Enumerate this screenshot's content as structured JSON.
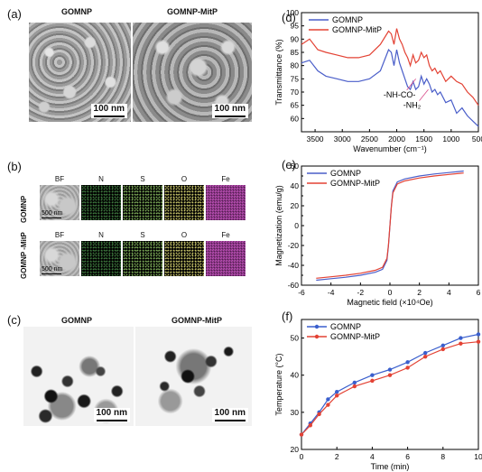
{
  "panels": {
    "a": {
      "label": "(a)",
      "left_title": "GOMNP",
      "right_title": "GOMNP-MitP",
      "scale_left": "100 nm",
      "scale_right": "100 nm"
    },
    "b": {
      "label": "(b)",
      "columns": [
        "BF",
        "N",
        "S",
        "O",
        "Fe"
      ],
      "rows": [
        {
          "label": "GOMNP",
          "scale": "500 nm"
        },
        {
          "label": "GOMNP -MitP",
          "scale": "500 nm"
        }
      ],
      "tile_colors": {
        "N": "#3f7a3f",
        "S": "#7fae5a",
        "O": "#c9c66a",
        "Fe": "#b84fb2"
      }
    },
    "c": {
      "label": "(c)",
      "left_title": "GOMNP",
      "right_title": "GOMNP-MitP",
      "scale_left": "100 nm",
      "scale_right": "100 nm"
    },
    "d": {
      "label": "(d)"
    },
    "e": {
      "label": "(e)"
    },
    "f": {
      "label": "(f)"
    }
  },
  "chart_data": [
    {
      "type": "line",
      "panel": "d",
      "xlabel": "Wavenumber (cm⁻¹)",
      "ylabel": "Transmittance (%)",
      "xlim": [
        3750,
        500
      ],
      "ylim": [
        55,
        100
      ],
      "xticks": [
        3500,
        3000,
        2500,
        2000,
        1500,
        1000,
        500
      ],
      "yticks": [
        60,
        65,
        70,
        75,
        80,
        85,
        90,
        95,
        100
      ],
      "legend": "top-left",
      "annotations": [
        {
          "text": "-NH-CO-",
          "x": 1650,
          "y": 68
        },
        {
          "text": "-NH₂",
          "x": 1420,
          "y": 64
        }
      ],
      "series": [
        {
          "name": "GOMNP",
          "color": "#4a5ec9",
          "x": [
            3750,
            3600,
            3450,
            3300,
            3100,
            2900,
            2700,
            2500,
            2300,
            2150,
            2100,
            2050,
            2000,
            1950,
            1900,
            1850,
            1800,
            1750,
            1700,
            1650,
            1600,
            1550,
            1500,
            1450,
            1400,
            1350,
            1300,
            1250,
            1200,
            1100,
            1000,
            900,
            800,
            700,
            600,
            500
          ],
          "y": [
            81,
            82,
            78,
            76,
            75,
            74,
            74,
            75,
            78,
            86,
            85,
            80,
            86,
            81,
            78,
            75,
            72,
            71,
            74,
            71,
            72,
            76,
            73,
            75,
            73,
            70,
            71,
            69,
            70,
            66,
            67,
            62,
            64,
            61,
            59,
            57
          ]
        },
        {
          "name": "GOMNP-MitP",
          "color": "#e34234",
          "x": [
            3750,
            3600,
            3450,
            3300,
            3100,
            2900,
            2700,
            2500,
            2300,
            2150,
            2100,
            2050,
            2000,
            1950,
            1900,
            1850,
            1800,
            1750,
            1700,
            1650,
            1600,
            1550,
            1500,
            1450,
            1400,
            1350,
            1300,
            1250,
            1200,
            1100,
            1000,
            900,
            800,
            700,
            600,
            500
          ],
          "y": [
            88,
            90,
            86,
            85,
            84,
            83,
            83,
            84,
            88,
            93,
            92,
            88,
            94,
            90,
            88,
            85,
            83,
            80,
            84,
            81,
            82,
            85,
            83,
            84,
            80,
            78,
            79,
            77,
            78,
            74,
            76,
            74,
            73,
            70,
            68,
            65
          ]
        }
      ]
    },
    {
      "type": "line",
      "panel": "e",
      "xlabel": "Magnetic field (×10⁴Oe)",
      "ylabel": "Magnetization (emu/g)",
      "xlim": [
        -6,
        6
      ],
      "ylim": [
        -60,
        60
      ],
      "xticks": [
        -6,
        -4,
        -2,
        0,
        2,
        4,
        6
      ],
      "yticks": [
        -60,
        -50,
        -40,
        -30,
        -20,
        -10,
        0,
        10,
        20,
        30,
        40,
        50,
        60
      ],
      "legend": "top-left",
      "series": [
        {
          "name": "GOMNP",
          "color": "#4a5ec9",
          "x": [
            -5,
            -4,
            -3,
            -2,
            -1,
            -0.5,
            -0.2,
            -0.1,
            0,
            0.1,
            0.2,
            0.5,
            1,
            2,
            3,
            4,
            5
          ],
          "y": [
            -55,
            -53.5,
            -52,
            -50,
            -47,
            -44,
            -35,
            -20,
            0,
            20,
            35,
            44,
            47,
            50,
            52,
            53.5,
            55
          ]
        },
        {
          "name": "GOMNP-MitP",
          "color": "#e34234",
          "x": [
            -5,
            -4,
            -3,
            -2,
            -1,
            -0.5,
            -0.2,
            -0.1,
            0,
            0.1,
            0.2,
            0.5,
            1,
            2,
            3,
            4,
            5
          ],
          "y": [
            -53,
            -51.5,
            -50,
            -48,
            -45,
            -42,
            -33,
            -19,
            0,
            19,
            33,
            42,
            45,
            48,
            50,
            51.5,
            53
          ]
        }
      ]
    },
    {
      "type": "line",
      "panel": "f",
      "xlabel": "Time (min)",
      "ylabel": "Temperature (°C)",
      "xlim": [
        0,
        10
      ],
      "ylim": [
        20,
        55
      ],
      "xticks": [
        0,
        2,
        4,
        6,
        8,
        10
      ],
      "yticks": [
        20,
        30,
        40,
        50
      ],
      "legend": "top-left",
      "series": [
        {
          "name": "GOMNP",
          "color": "#3a5fcd",
          "x": [
            0,
            0.5,
            1,
            1.5,
            2,
            3,
            4,
            5,
            6,
            7,
            8,
            9,
            10
          ],
          "y": [
            24,
            27,
            30,
            33.5,
            35.5,
            38,
            40,
            41.5,
            43.5,
            46,
            48,
            50,
            51
          ]
        },
        {
          "name": "GOMNP-MitP",
          "color": "#e34234",
          "x": [
            0,
            0.5,
            1,
            1.5,
            2,
            3,
            4,
            5,
            6,
            7,
            8,
            9,
            10
          ],
          "y": [
            24,
            26.5,
            29.5,
            32,
            34.5,
            37,
            38.5,
            40,
            42,
            45,
            47,
            48.5,
            49
          ]
        }
      ]
    }
  ]
}
